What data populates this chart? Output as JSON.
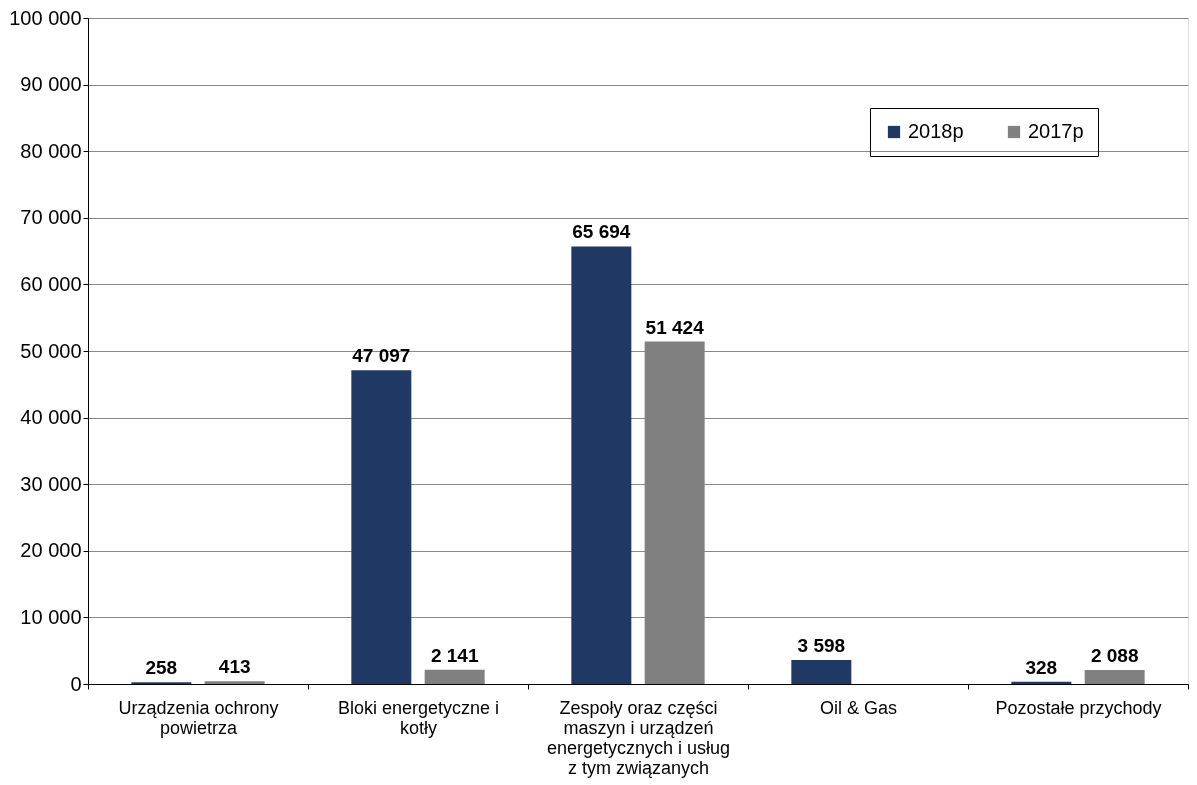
{
  "chart_data": {
    "type": "bar",
    "categories": [
      "Urządzenia ochrony powietrza",
      "Bloki energetyczne i kotły",
      "Zespoły oraz części maszyn i urządzeń energetycznych i usług z tym związanych",
      "Oil & Gas",
      "Pozostałe przychody"
    ],
    "series": [
      {
        "name": "2018p",
        "color": "#203864",
        "values": [
          258,
          47097,
          65694,
          3598,
          328
        ],
        "value_labels": [
          "258",
          "47 097",
          "65 694",
          "3 598",
          "328"
        ]
      },
      {
        "name": "2017p",
        "color": "#808080",
        "values": [
          413,
          2141,
          51424,
          null,
          2088
        ],
        "value_labels": [
          "413",
          "2 141",
          "51 424",
          null,
          "2 088"
        ]
      }
    ],
    "ylim": [
      0,
      100000
    ],
    "yticks": [
      {
        "value": 0,
        "label": "0"
      },
      {
        "value": 10000,
        "label": "10 000"
      },
      {
        "value": 20000,
        "label": "20 000"
      },
      {
        "value": 30000,
        "label": "30 000"
      },
      {
        "value": 40000,
        "label": "40 000"
      },
      {
        "value": 50000,
        "label": "50 000"
      },
      {
        "value": 60000,
        "label": "60 000"
      },
      {
        "value": 70000,
        "label": "70 000"
      },
      {
        "value": 80000,
        "label": "80 000"
      },
      {
        "value": 90000,
        "label": "90 000"
      },
      {
        "value": 100000,
        "label": "100 000"
      }
    ],
    "grid": "y",
    "legend": "top right"
  }
}
